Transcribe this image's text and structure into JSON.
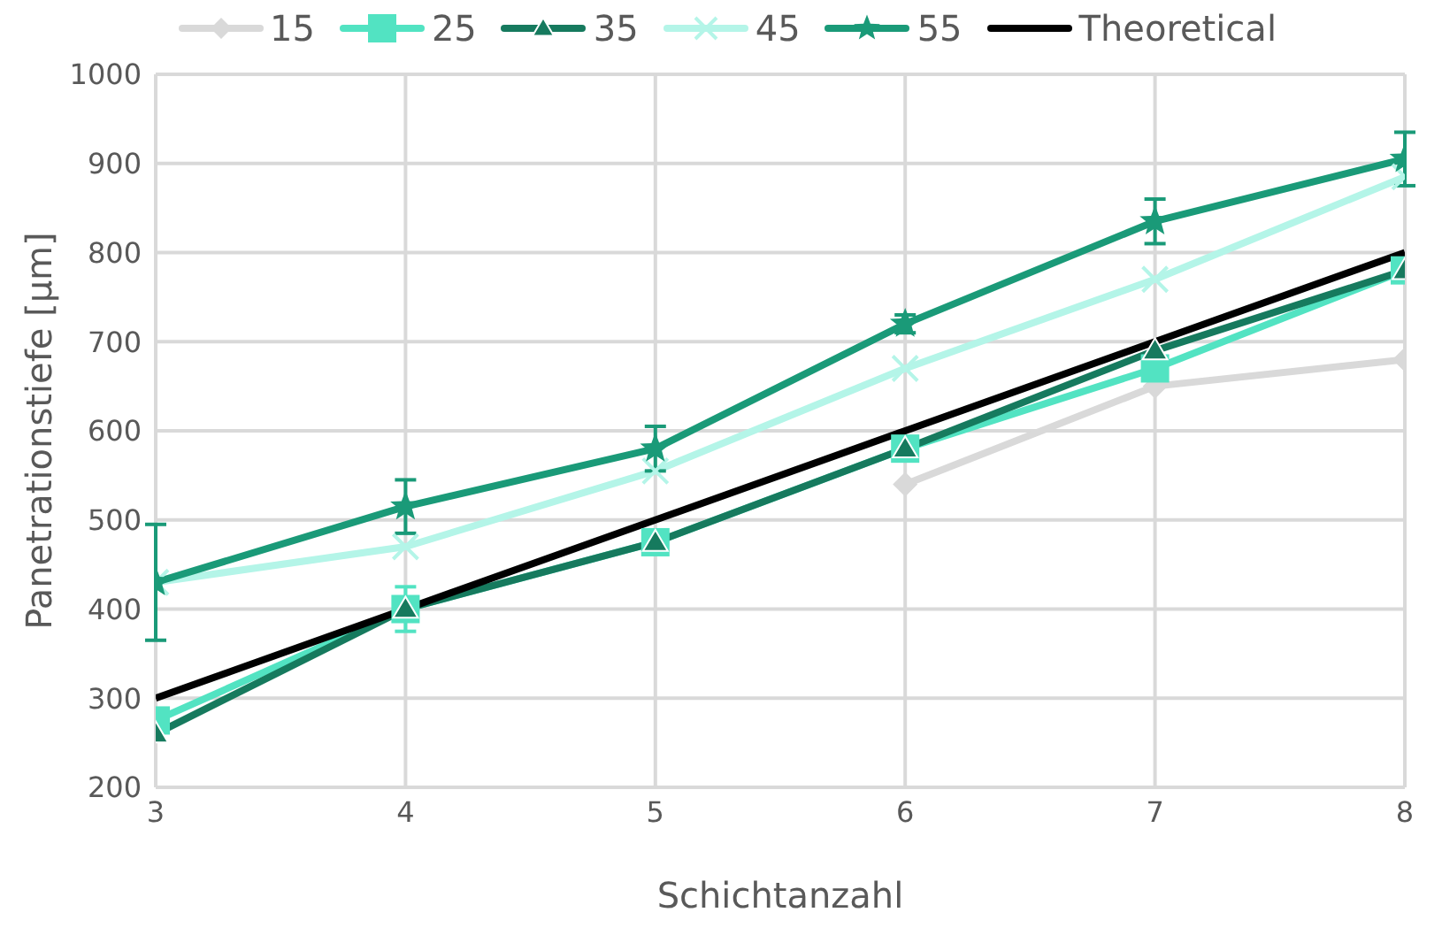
{
  "chart_data": {
    "type": "line",
    "xlabel": "Schichtanzahl",
    "ylabel": "Panetrationstiefe [µm]",
    "x": [
      3,
      4,
      5,
      6,
      7,
      8
    ],
    "series": [
      {
        "name": "15",
        "color": "#d9d9d9",
        "marker": "diamond",
        "values": [
          null,
          null,
          null,
          540,
          650,
          680
        ]
      },
      {
        "name": "25",
        "color": "#52e3c2",
        "marker": "square",
        "values": [
          275,
          400,
          475,
          580,
          670,
          780
        ],
        "errors": [
          null,
          25,
          null,
          null,
          null,
          null
        ]
      },
      {
        "name": "35",
        "color": "#167a5e",
        "marker": "triangle",
        "values": [
          260,
          400,
          475,
          580,
          690,
          780
        ]
      },
      {
        "name": "45",
        "color": "#b4f5e8",
        "marker": "cross",
        "values": [
          430,
          470,
          555,
          670,
          770,
          885
        ]
      },
      {
        "name": "55",
        "color": "#1a9a78",
        "marker": "star",
        "values": [
          430,
          515,
          580,
          720,
          835,
          905
        ],
        "errors": [
          65,
          30,
          25,
          10,
          25,
          30
        ]
      },
      {
        "name": "Theoretical",
        "color": "#000000",
        "marker": "none",
        "values": [
          300,
          400,
          500,
          600,
          700,
          800
        ]
      }
    ],
    "xlim": [
      3,
      8
    ],
    "xticks": [
      3,
      4,
      5,
      6,
      7,
      8
    ],
    "ylim": [
      200,
      1000
    ],
    "yticks": [
      200,
      300,
      400,
      500,
      600,
      700,
      800,
      900,
      1000
    ],
    "grid": true,
    "legend": "top"
  }
}
